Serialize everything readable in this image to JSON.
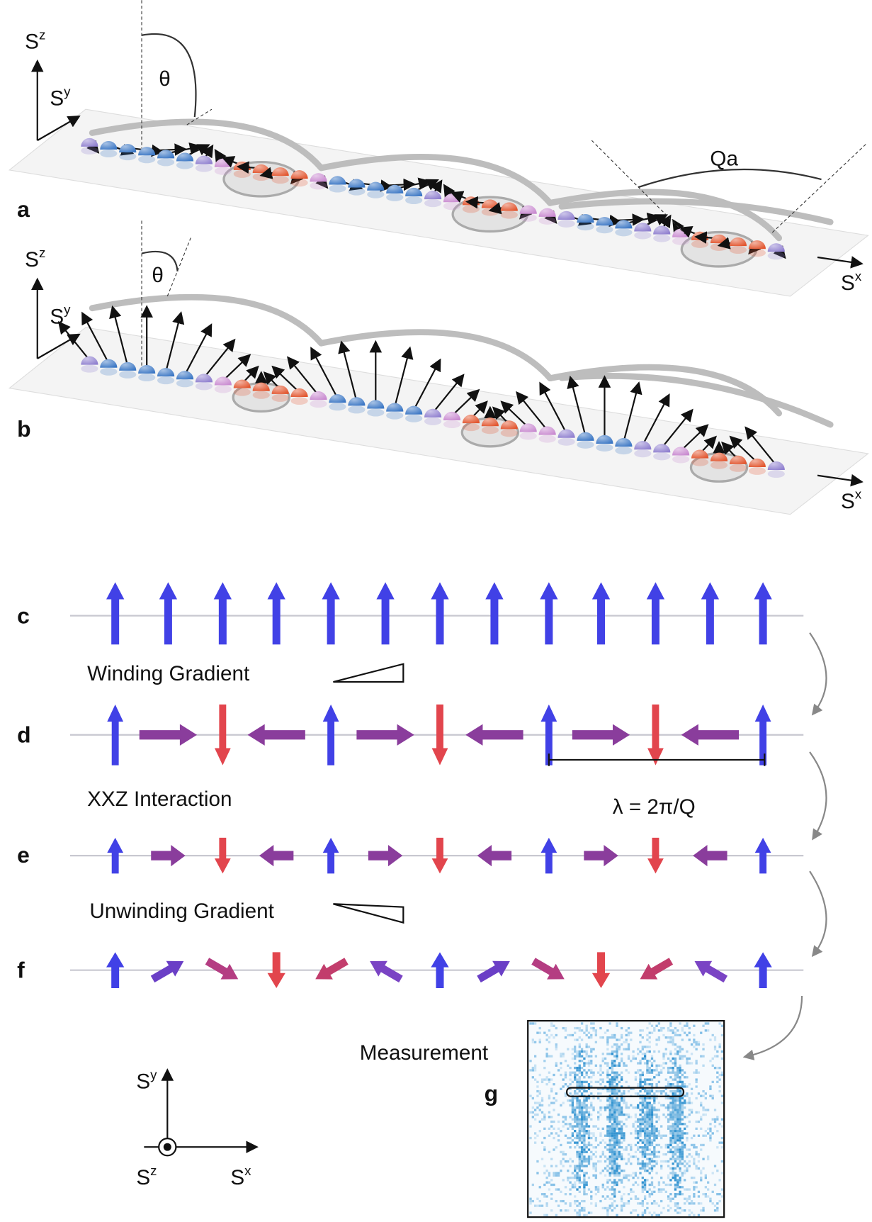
{
  "panel_labels": [
    "a",
    "b",
    "c",
    "d",
    "e",
    "f",
    "g"
  ],
  "panel_a": {
    "sz": {
      "base": "S",
      "sup": "z"
    },
    "sy": {
      "base": "S",
      "sup": "y"
    },
    "sx": {
      "base": "S",
      "sup": "x"
    },
    "theta": "θ",
    "qa": "Qa"
  },
  "panel_b": {
    "sz": {
      "base": "S",
      "sup": "z"
    },
    "sy": {
      "base": "S",
      "sup": "y"
    },
    "sx": {
      "base": "S",
      "sup": "x"
    },
    "theta": "θ"
  },
  "sequence": {
    "winding": "Winding Gradient",
    "interaction": "XXZ Interaction",
    "unwinding": "Unwinding Gradient",
    "wavelength": "λ = 2π/Q",
    "measurement": "Measurement"
  },
  "legend": {
    "sy": {
      "base": "S",
      "sup": "y"
    },
    "sz": {
      "base": "S",
      "sup": "z"
    },
    "sx": {
      "base": "S",
      "sup": "x"
    }
  }
}
